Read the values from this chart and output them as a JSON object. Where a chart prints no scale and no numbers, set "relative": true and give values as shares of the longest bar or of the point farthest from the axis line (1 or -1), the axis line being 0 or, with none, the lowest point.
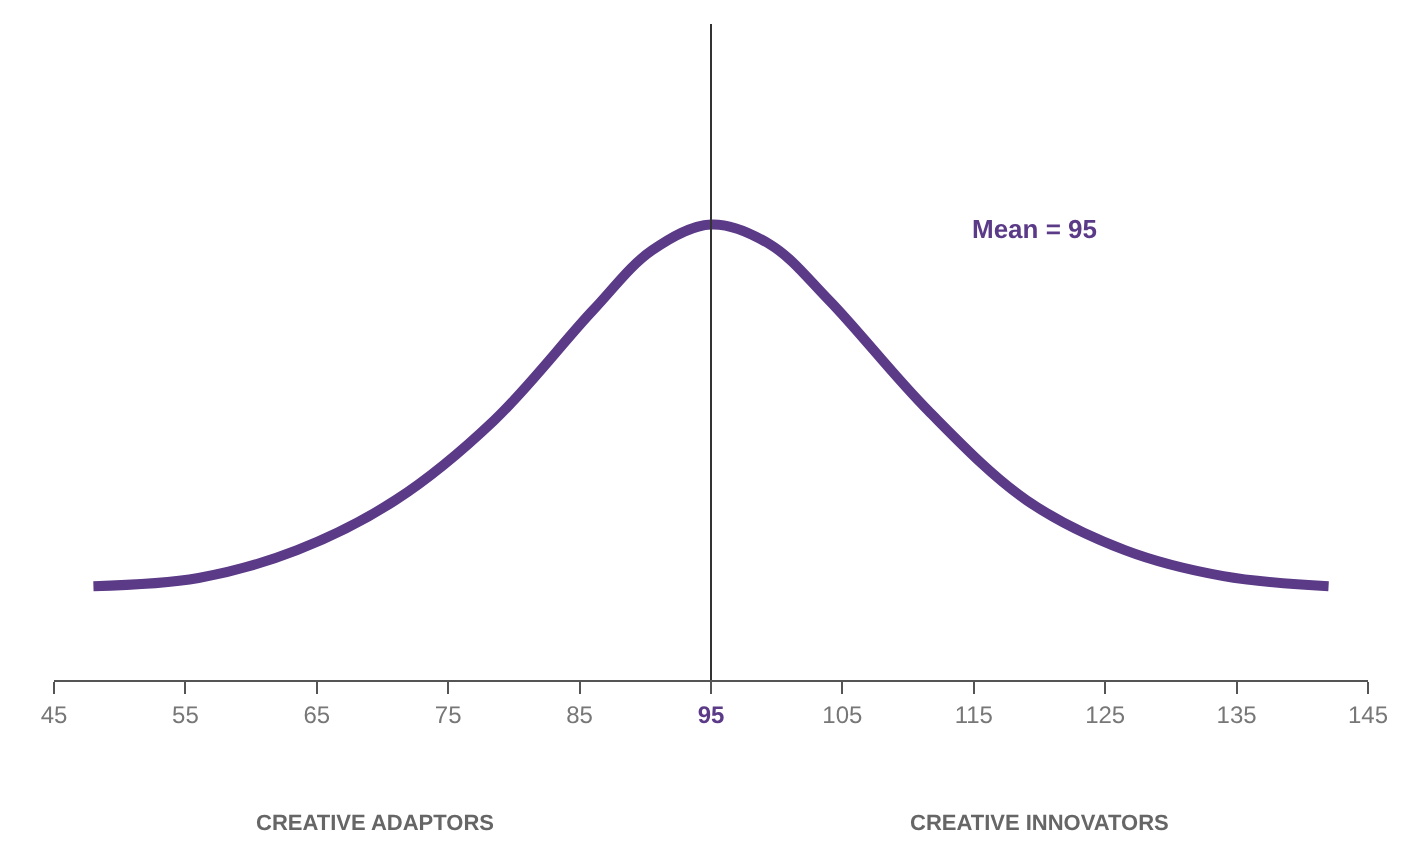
{
  "chart_data": {
    "type": "line",
    "relative": true,
    "x": [
      48,
      56,
      63.5,
      71,
      78.5,
      86,
      90.5,
      95,
      99.5,
      104,
      111.5,
      119,
      126.5,
      134,
      142
    ],
    "series": [
      {
        "color": "#5b3a87",
        "values": [
          0.206,
          0.224,
          0.285,
          0.395,
          0.57,
          0.811,
          0.943,
          1,
          0.956,
          0.833,
          0.592,
          0.395,
          0.285,
          0.228,
          0.206
        ]
      }
    ],
    "xlim": [
      45,
      145
    ],
    "xticks": [
      45,
      55,
      65,
      75,
      85,
      95,
      105,
      115,
      125,
      135,
      145
    ],
    "ref_lines": [
      {
        "axis": "x",
        "value": 95,
        "color": "#333333"
      }
    ],
    "annotations": [
      "Mean = 95",
      "CREATIVE ADAPTORS",
      "CREATIVE INNOVATORS"
    ],
    "marker": "none",
    "line_style": "solid"
  }
}
